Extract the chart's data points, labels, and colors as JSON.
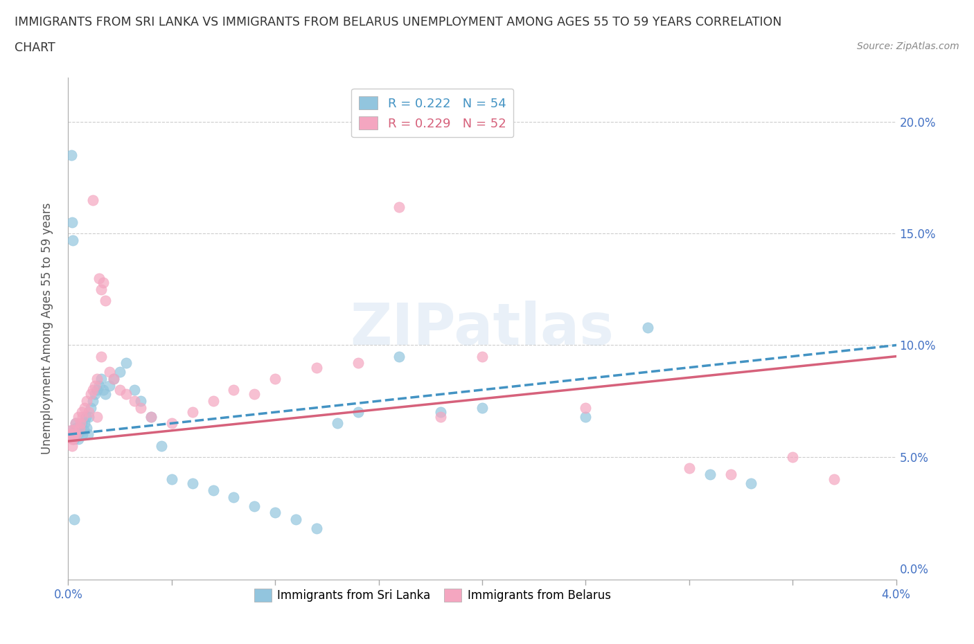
{
  "title_line1": "IMMIGRANTS FROM SRI LANKA VS IMMIGRANTS FROM BELARUS UNEMPLOYMENT AMONG AGES 55 TO 59 YEARS CORRELATION",
  "title_line2": "CHART",
  "source": "Source: ZipAtlas.com",
  "sri_lanka_R": 0.222,
  "sri_lanka_N": 54,
  "belarus_R": 0.229,
  "belarus_N": 52,
  "sri_lanka_color": "#92C5DE",
  "belarus_color": "#F4A6C0",
  "sri_lanka_line_color": "#4393C3",
  "belarus_line_color": "#D6617B",
  "xlim": [
    0.0,
    0.04
  ],
  "ylim": [
    -0.005,
    0.22
  ],
  "xticks": [
    0.0,
    0.005,
    0.01,
    0.015,
    0.02,
    0.025,
    0.03,
    0.035,
    0.04
  ],
  "yticks": [
    0.0,
    0.05,
    0.1,
    0.15,
    0.2
  ],
  "ylabel": "Unemployment Among Ages 55 to 59 years",
  "sri_lanka_x": [
    0.0002,
    0.00025,
    0.0003,
    0.00035,
    0.0004,
    0.00045,
    0.0005,
    0.00055,
    0.0006,
    0.00065,
    0.0007,
    0.00075,
    0.0008,
    0.00085,
    0.0009,
    0.00095,
    0.001,
    0.0011,
    0.0012,
    0.0013,
    0.0014,
    0.0015,
    0.0016,
    0.0017,
    0.0018,
    0.002,
    0.0022,
    0.0025,
    0.0028,
    0.0032,
    0.0035,
    0.004,
    0.0045,
    0.005,
    0.006,
    0.007,
    0.008,
    0.009,
    0.01,
    0.011,
    0.012,
    0.013,
    0.014,
    0.016,
    0.018,
    0.02,
    0.025,
    0.028,
    0.031,
    0.033,
    0.00015,
    0.00018,
    0.00022,
    0.00028
  ],
  "sri_lanka_y": [
    0.062,
    0.06,
    0.058,
    0.065,
    0.063,
    0.06,
    0.058,
    0.062,
    0.063,
    0.065,
    0.06,
    0.062,
    0.065,
    0.068,
    0.063,
    0.06,
    0.068,
    0.072,
    0.075,
    0.078,
    0.08,
    0.082,
    0.085,
    0.08,
    0.078,
    0.082,
    0.085,
    0.088,
    0.092,
    0.08,
    0.075,
    0.068,
    0.055,
    0.04,
    0.038,
    0.035,
    0.032,
    0.028,
    0.025,
    0.022,
    0.018,
    0.065,
    0.07,
    0.095,
    0.07,
    0.072,
    0.068,
    0.108,
    0.042,
    0.038,
    0.185,
    0.155,
    0.147,
    0.022
  ],
  "belarus_x": [
    0.0001,
    0.00015,
    0.0002,
    0.00025,
    0.0003,
    0.00035,
    0.0004,
    0.0005,
    0.00055,
    0.0006,
    0.00065,
    0.0007,
    0.0008,
    0.0009,
    0.001,
    0.0011,
    0.0012,
    0.0013,
    0.0014,
    0.0015,
    0.0016,
    0.0017,
    0.0018,
    0.002,
    0.0022,
    0.0025,
    0.0028,
    0.0032,
    0.0035,
    0.004,
    0.005,
    0.006,
    0.007,
    0.008,
    0.009,
    0.01,
    0.012,
    0.014,
    0.016,
    0.018,
    0.02,
    0.025,
    0.03,
    0.032,
    0.035,
    0.037,
    0.0012,
    0.0014,
    0.0016,
    0.00018,
    0.00022,
    0.00028
  ],
  "belarus_y": [
    0.06,
    0.062,
    0.058,
    0.06,
    0.062,
    0.065,
    0.06,
    0.068,
    0.063,
    0.065,
    0.07,
    0.068,
    0.072,
    0.075,
    0.07,
    0.078,
    0.08,
    0.082,
    0.085,
    0.13,
    0.125,
    0.128,
    0.12,
    0.088,
    0.085,
    0.08,
    0.078,
    0.075,
    0.072,
    0.068,
    0.065,
    0.07,
    0.075,
    0.08,
    0.078,
    0.085,
    0.09,
    0.092,
    0.162,
    0.068,
    0.095,
    0.072,
    0.045,
    0.042,
    0.05,
    0.04,
    0.165,
    0.068,
    0.095,
    0.055,
    0.058,
    0.06
  ]
}
